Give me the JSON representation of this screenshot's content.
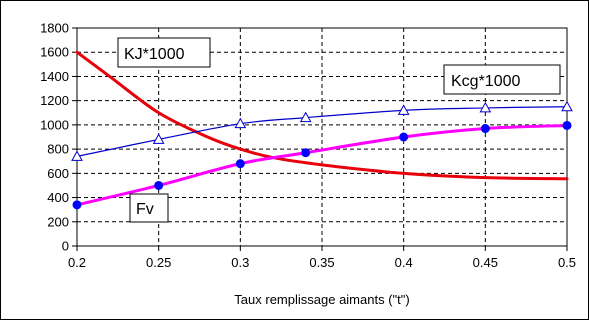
{
  "chart_data": {
    "type": "line",
    "xlabel": "Taux remplissage aimants (\"t\")",
    "ylabel": "",
    "xlim": [
      0.2,
      0.5
    ],
    "ylim": [
      0,
      1800
    ],
    "x_ticks": [
      0.2,
      0.25,
      0.3,
      0.35,
      0.4,
      0.45,
      0.5
    ],
    "x_tick_labels": [
      "0.2",
      "0.25",
      "0.3",
      "0.35",
      "0.4",
      "0.45",
      "0.5"
    ],
    "y_ticks": [
      0,
      200,
      400,
      600,
      800,
      1000,
      1200,
      1400,
      1600,
      1800
    ],
    "y_tick_labels": [
      "0",
      "200",
      "400",
      "600",
      "800",
      "1000",
      "1200",
      "1400",
      "1600",
      "1800"
    ],
    "grid": true,
    "series": [
      {
        "name": "KJ*1000",
        "color": "#e8000b",
        "marker": "none",
        "x": [
          0.2,
          0.22,
          0.25,
          0.28,
          0.3,
          0.32,
          0.35,
          0.4,
          0.45,
          0.5
        ],
        "y": [
          1600,
          1400,
          1100,
          900,
          800,
          730,
          670,
          600,
          565,
          555
        ]
      },
      {
        "name": "Kcg*1000",
        "color": "#0000cc",
        "marker": "triangle-open",
        "x": [
          0.2,
          0.25,
          0.3,
          0.34,
          0.4,
          0.45,
          0.5
        ],
        "y": [
          740,
          880,
          1010,
          1060,
          1120,
          1140,
          1150
        ]
      },
      {
        "name": "Fv",
        "color": "#ff00ff",
        "marker": "circle-filled",
        "marker_color": "#0000ff",
        "x": [
          0.2,
          0.25,
          0.3,
          0.34,
          0.4,
          0.45,
          0.5
        ],
        "y": [
          340,
          500,
          680,
          770,
          900,
          970,
          995
        ]
      }
    ]
  }
}
